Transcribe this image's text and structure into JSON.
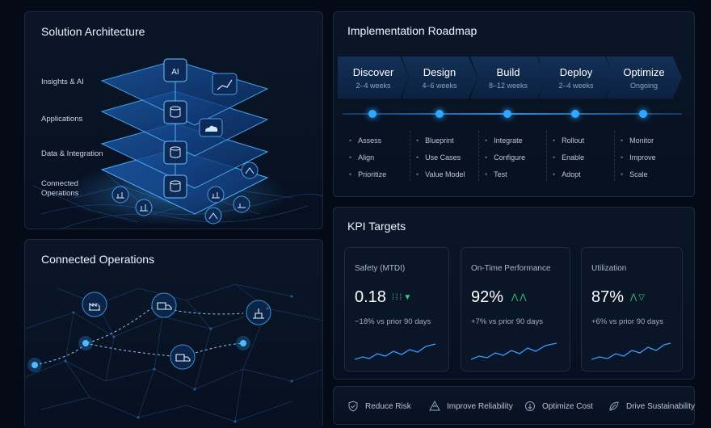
{
  "architecture": {
    "title": "Solution Architecture",
    "layers": [
      "Insights & AI",
      "Applications",
      "Data & Integration",
      "Connected Operations"
    ]
  },
  "operations": {
    "title": "Connected Operations"
  },
  "roadmap": {
    "title": "Implementation Roadmap",
    "phases": [
      {
        "name": "Discover",
        "duration": "2–4 weeks",
        "steps": [
          "Assess",
          "Align",
          "Prioritize"
        ]
      },
      {
        "name": "Design",
        "duration": "4–6 weeks",
        "steps": [
          "Blueprint",
          "Use Cases",
          "Value Model"
        ]
      },
      {
        "name": "Build",
        "duration": "8–12 weeks",
        "steps": [
          "Integrate",
          "Configure",
          "Test"
        ]
      },
      {
        "name": "Deploy",
        "duration": "2–4 weeks",
        "steps": [
          "Rollout",
          "Enable",
          "Adopt"
        ]
      },
      {
        "name": "Optimize",
        "duration": "Ongoing",
        "steps": [
          "Monitor",
          "Improve",
          "Scale"
        ]
      }
    ]
  },
  "kpi": {
    "title": "KPI Targets",
    "cards": [
      {
        "label": "Safety (MTDI)",
        "value": "0.18",
        "delta": "−18% vs prior 90 days"
      },
      {
        "label": "On-Time Performance",
        "value": "92%",
        "delta": "+7% vs prior 90 days"
      },
      {
        "label": "Utilization",
        "value": "87%",
        "delta": "+6% vs prior 90 days"
      }
    ]
  },
  "benefits": [
    "Reduce Risk",
    "Improve Reliability",
    "Optimize Cost",
    "Drive Sustainability"
  ],
  "colors": {
    "accent": "#2fa8ff",
    "positive": "#38d07b",
    "background": "#050b16"
  }
}
